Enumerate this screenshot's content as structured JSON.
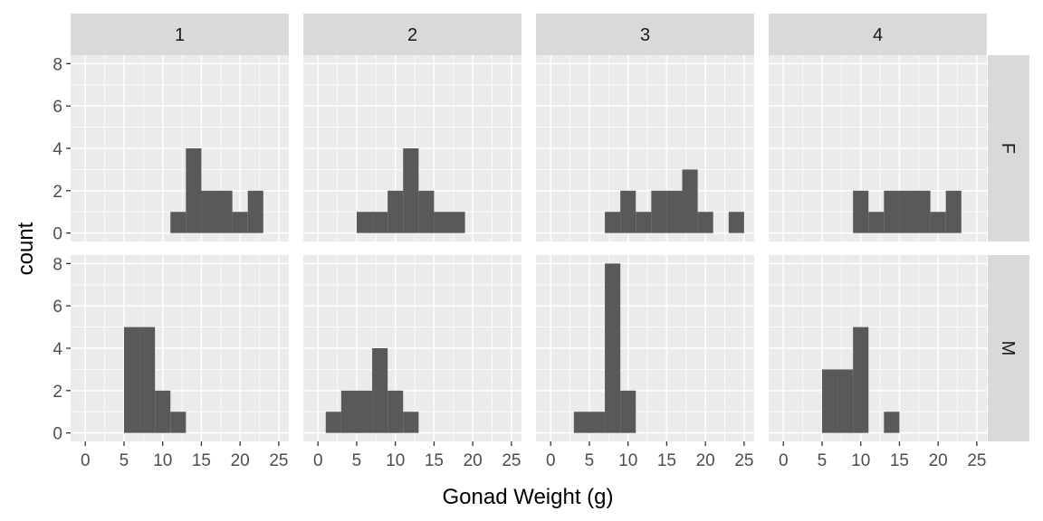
{
  "chart_data": {
    "type": "histogram",
    "facet_columns": [
      "1",
      "2",
      "3",
      "4"
    ],
    "facet_rows": [
      "F",
      "M"
    ],
    "xlabel": "Gonad Weight (g)",
    "ylabel": "count",
    "xlim": [
      0,
      25
    ],
    "ylim": [
      0,
      8
    ],
    "x_ticks": [
      0,
      5,
      10,
      15,
      20,
      25
    ],
    "y_ticks": [
      0,
      2,
      4,
      6,
      8
    ],
    "bins": [
      1,
      3,
      5,
      7,
      9,
      11,
      13,
      15,
      17,
      19,
      21,
      23,
      25
    ],
    "bar_color": "#595959",
    "panel_background": "#ebebeb",
    "strip_background": "#d9d9d9",
    "grid": true,
    "panels": [
      {
        "col": "1",
        "row": "F",
        "counts": [
          0,
          0,
          0,
          0,
          0,
          1,
          4,
          2,
          2,
          1,
          2,
          0
        ]
      },
      {
        "col": "2",
        "row": "F",
        "counts": [
          0,
          0,
          1,
          1,
          2,
          4,
          2,
          1,
          1,
          0,
          0,
          0
        ]
      },
      {
        "col": "3",
        "row": "F",
        "counts": [
          0,
          0,
          0,
          1,
          2,
          1,
          2,
          2,
          3,
          1,
          0,
          1
        ]
      },
      {
        "col": "4",
        "row": "F",
        "counts": [
          0,
          0,
          0,
          0,
          2,
          1,
          2,
          2,
          2,
          1,
          2,
          0
        ]
      },
      {
        "col": "1",
        "row": "M",
        "counts": [
          0,
          0,
          5,
          5,
          2,
          1,
          0,
          0,
          0,
          0,
          0,
          0
        ]
      },
      {
        "col": "2",
        "row": "M",
        "counts": [
          1,
          2,
          2,
          4,
          2,
          1,
          0,
          0,
          0,
          0,
          0,
          0
        ]
      },
      {
        "col": "3",
        "row": "M",
        "counts": [
          0,
          1,
          1,
          8,
          2,
          0,
          0,
          0,
          0,
          0,
          0,
          0
        ]
      },
      {
        "col": "4",
        "row": "M",
        "counts": [
          0,
          0,
          3,
          3,
          5,
          0,
          1,
          0,
          0,
          0,
          0,
          0
        ]
      }
    ]
  }
}
